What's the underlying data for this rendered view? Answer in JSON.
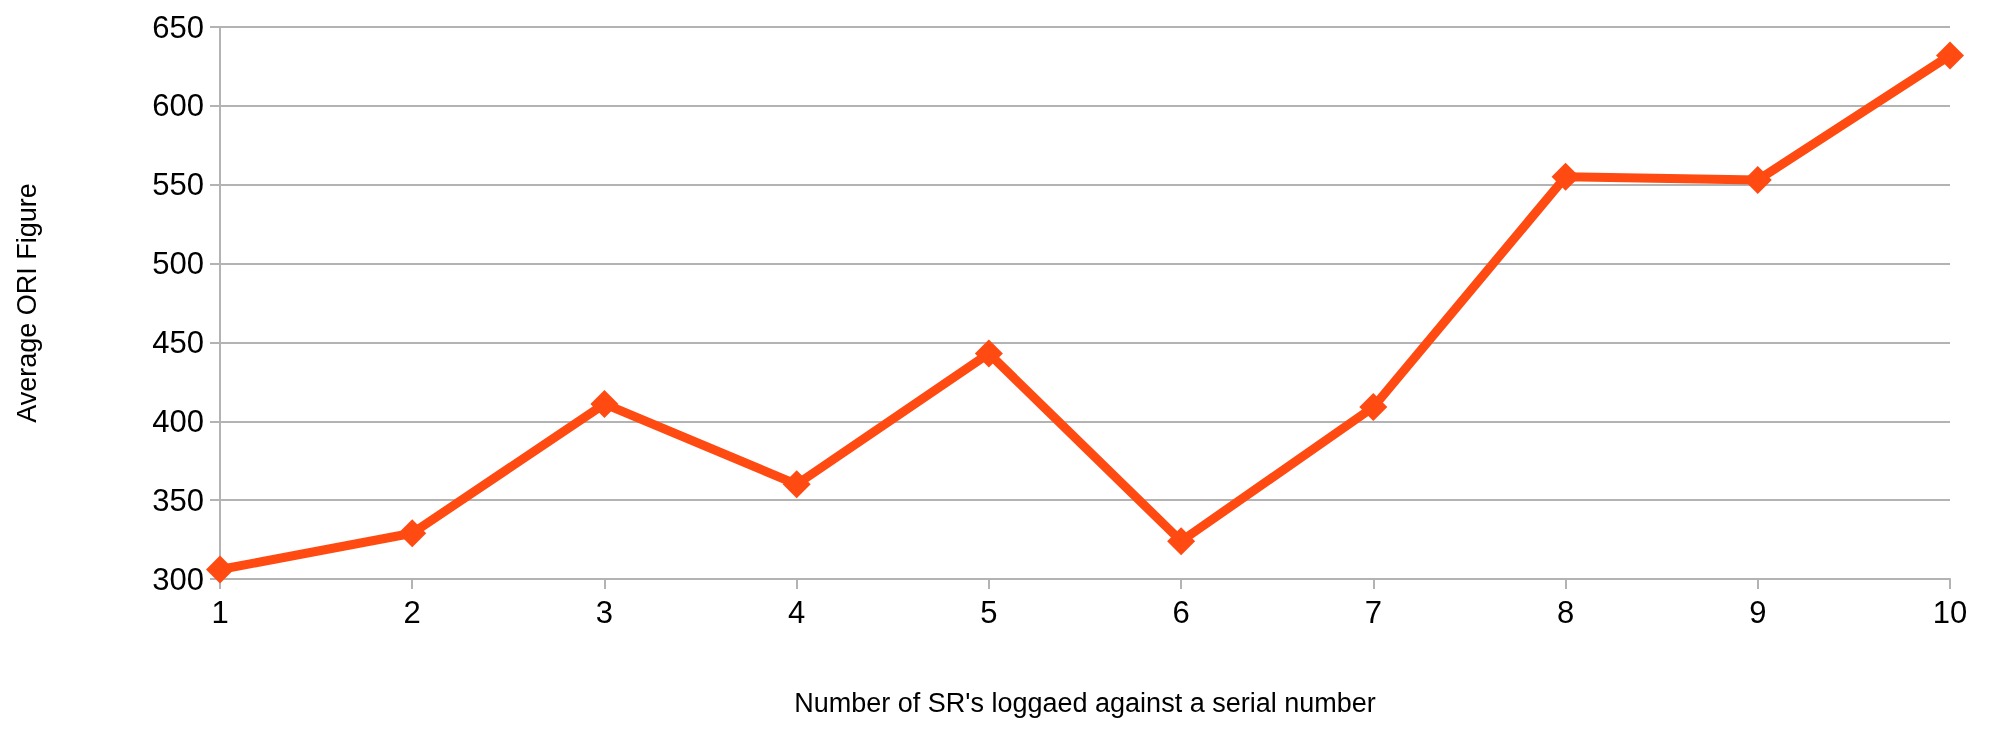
{
  "chart_data": {
    "type": "line",
    "xlabel": "Number of SR's loggaed against a serial number",
    "ylabel": "Average ORI Figure",
    "x": [
      1,
      2,
      3,
      4,
      5,
      6,
      7,
      8,
      9,
      10
    ],
    "series": [
      {
        "color": "#ff4a12",
        "values": [
          306,
          329,
          411,
          360,
          443,
          324,
          409,
          555,
          553,
          632
        ]
      }
    ],
    "xlim": [
      1,
      10
    ],
    "xticks": [
      1,
      2,
      3,
      4,
      5,
      6,
      7,
      8,
      9,
      10
    ],
    "ylim": [
      300,
      650
    ],
    "yticks": [
      300,
      350,
      400,
      450,
      500,
      550,
      600,
      650
    ],
    "grid": "y",
    "marker": "diamond",
    "line_style": "solid"
  }
}
